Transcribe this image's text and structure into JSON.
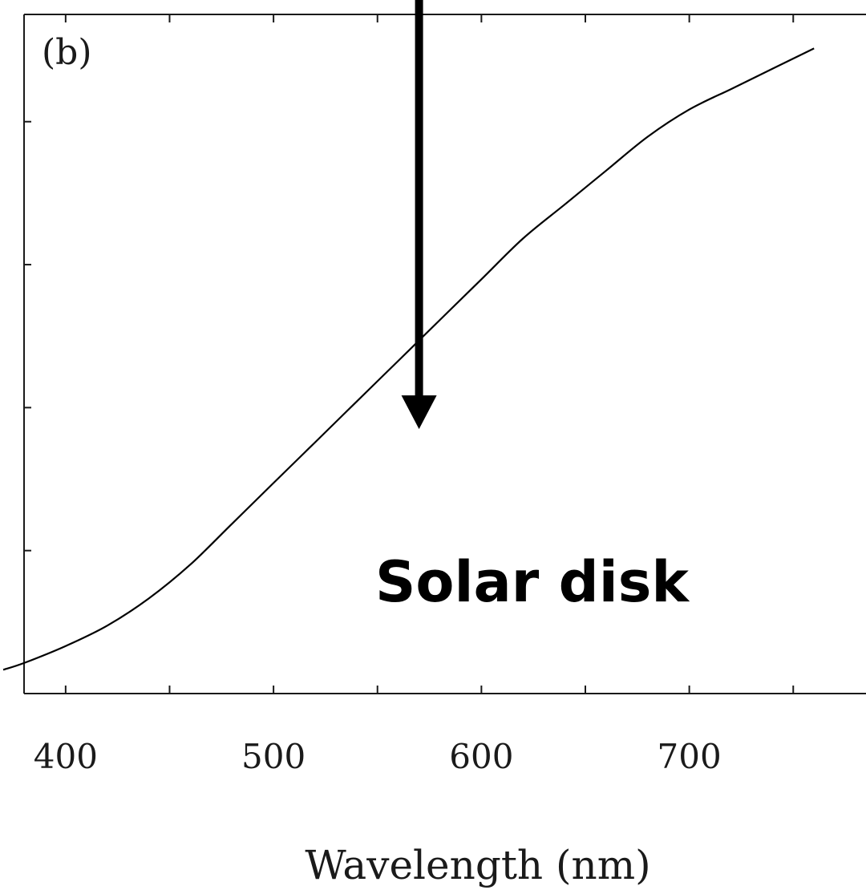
{
  "chart_data": {
    "type": "line",
    "panel_label": "(b)",
    "xlabel": "Wavelength (nm)",
    "ylabel": "",
    "xlim": [
      380,
      785
    ],
    "ylim": [
      0,
      1
    ],
    "x_ticks": [
      400,
      500,
      600,
      700
    ],
    "y_tick_count": 4,
    "grid": false,
    "annotation": "Solar disk",
    "arrow_target": {
      "x": 570,
      "y": 0.38
    },
    "series": [
      {
        "line_color": "#000000",
        "x": [
          370,
          380,
          400,
          420,
          440,
          460,
          480,
          500,
          520,
          540,
          560,
          580,
          600,
          620,
          640,
          660,
          680,
          700,
          720,
          740,
          760
        ],
        "y": [
          0.035,
          0.045,
          0.07,
          0.1,
          0.14,
          0.19,
          0.25,
          0.31,
          0.37,
          0.43,
          0.49,
          0.55,
          0.61,
          0.67,
          0.72,
          0.77,
          0.82,
          0.86,
          0.89,
          0.92,
          0.95
        ]
      }
    ]
  }
}
